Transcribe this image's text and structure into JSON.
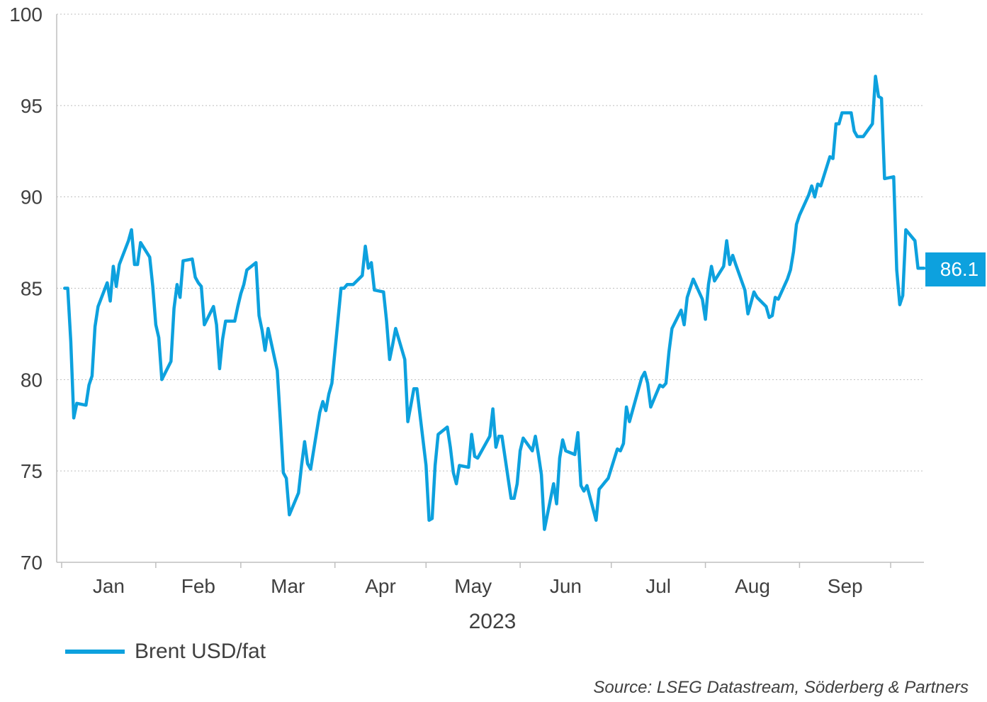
{
  "chart_data": {
    "type": "line",
    "title": "",
    "xlabel": "2023",
    "ylabel": "",
    "ylim": [
      70,
      100
    ],
    "yticks": [
      70,
      75,
      80,
      85,
      90,
      95,
      100
    ],
    "grid": "horizontal dotted",
    "legend_position": "bottom-left",
    "months": [
      "Jan",
      "Feb",
      "Mar",
      "Apr",
      "May",
      "Jun",
      "Jul",
      "Aug",
      "Sep"
    ],
    "year_label": "2023",
    "end_label": "86.1",
    "series": [
      {
        "name": "Brent USD/fat",
        "color": "#0da1de",
        "x": [
          "2023-01-02",
          "2023-01-03",
          "2023-01-04",
          "2023-01-05",
          "2023-01-06",
          "2023-01-09",
          "2023-01-10",
          "2023-01-11",
          "2023-01-12",
          "2023-01-13",
          "2023-01-16",
          "2023-01-17",
          "2023-01-18",
          "2023-01-19",
          "2023-01-20",
          "2023-01-23",
          "2023-01-24",
          "2023-01-25",
          "2023-01-26",
          "2023-01-27",
          "2023-01-30",
          "2023-01-31",
          "2023-02-01",
          "2023-02-02",
          "2023-02-03",
          "2023-02-06",
          "2023-02-07",
          "2023-02-08",
          "2023-02-09",
          "2023-02-10",
          "2023-02-13",
          "2023-02-14",
          "2023-02-15",
          "2023-02-16",
          "2023-02-17",
          "2023-02-20",
          "2023-02-21",
          "2023-02-22",
          "2023-02-23",
          "2023-02-24",
          "2023-02-27",
          "2023-02-28",
          "2023-03-01",
          "2023-03-02",
          "2023-03-03",
          "2023-03-06",
          "2023-03-07",
          "2023-03-08",
          "2023-03-09",
          "2023-03-10",
          "2023-03-13",
          "2023-03-14",
          "2023-03-15",
          "2023-03-16",
          "2023-03-17",
          "2023-03-20",
          "2023-03-21",
          "2023-03-22",
          "2023-03-23",
          "2023-03-24",
          "2023-03-27",
          "2023-03-28",
          "2023-03-29",
          "2023-03-30",
          "2023-03-31",
          "2023-04-03",
          "2023-04-04",
          "2023-04-05",
          "2023-04-06",
          "2023-04-07",
          "2023-04-10",
          "2023-04-11",
          "2023-04-12",
          "2023-04-13",
          "2023-04-14",
          "2023-04-17",
          "2023-04-18",
          "2023-04-19",
          "2023-04-20",
          "2023-04-21",
          "2023-04-24",
          "2023-04-25",
          "2023-04-26",
          "2023-04-27",
          "2023-04-28",
          "2023-05-01",
          "2023-05-02",
          "2023-05-03",
          "2023-05-04",
          "2023-05-05",
          "2023-05-08",
          "2023-05-09",
          "2023-05-10",
          "2023-05-11",
          "2023-05-12",
          "2023-05-15",
          "2023-05-16",
          "2023-05-17",
          "2023-05-18",
          "2023-05-19",
          "2023-05-22",
          "2023-05-23",
          "2023-05-24",
          "2023-05-25",
          "2023-05-26",
          "2023-05-29",
          "2023-05-30",
          "2023-05-31",
          "2023-06-01",
          "2023-06-02",
          "2023-06-05",
          "2023-06-06",
          "2023-06-07",
          "2023-06-08",
          "2023-06-09",
          "2023-06-12",
          "2023-06-13",
          "2023-06-14",
          "2023-06-15",
          "2023-06-16",
          "2023-06-19",
          "2023-06-20",
          "2023-06-21",
          "2023-06-22",
          "2023-06-23",
          "2023-06-26",
          "2023-06-27",
          "2023-06-28",
          "2023-06-29",
          "2023-06-30",
          "2023-07-03",
          "2023-07-04",
          "2023-07-05",
          "2023-07-06",
          "2023-07-07",
          "2023-07-10",
          "2023-07-11",
          "2023-07-12",
          "2023-07-13",
          "2023-07-14",
          "2023-07-17",
          "2023-07-18",
          "2023-07-19",
          "2023-07-20",
          "2023-07-21",
          "2023-07-24",
          "2023-07-25",
          "2023-07-26",
          "2023-07-27",
          "2023-07-28",
          "2023-07-31",
          "2023-08-01",
          "2023-08-02",
          "2023-08-03",
          "2023-08-04",
          "2023-08-07",
          "2023-08-08",
          "2023-08-09",
          "2023-08-10",
          "2023-08-11",
          "2023-08-14",
          "2023-08-15",
          "2023-08-16",
          "2023-08-17",
          "2023-08-18",
          "2023-08-21",
          "2023-08-22",
          "2023-08-23",
          "2023-08-24",
          "2023-08-25",
          "2023-08-28",
          "2023-08-29",
          "2023-08-30",
          "2023-08-31",
          "2023-09-01",
          "2023-09-04",
          "2023-09-05",
          "2023-09-06",
          "2023-09-07",
          "2023-09-08",
          "2023-09-11",
          "2023-09-12",
          "2023-09-13",
          "2023-09-14",
          "2023-09-15",
          "2023-09-18",
          "2023-09-19",
          "2023-09-20",
          "2023-09-21",
          "2023-09-22",
          "2023-09-25",
          "2023-09-26",
          "2023-09-27",
          "2023-09-28",
          "2023-09-29",
          "2023-10-02",
          "2023-10-03",
          "2023-10-04",
          "2023-10-05",
          "2023-10-06",
          "2023-10-09",
          "2023-10-10",
          "2023-10-11",
          "2023-10-12"
        ],
        "values": [
          85.0,
          85.0,
          82.1,
          77.9,
          78.7,
          78.6,
          79.7,
          80.2,
          82.9,
          84.0,
          85.3,
          84.3,
          86.2,
          85.1,
          86.3,
          87.6,
          88.2,
          86.3,
          86.3,
          87.5,
          86.7,
          85.1,
          83.0,
          82.3,
          80.0,
          81.0,
          83.9,
          85.2,
          84.5,
          86.5,
          86.6,
          85.6,
          85.3,
          85.1,
          83.0,
          84.0,
          83.0,
          80.6,
          82.2,
          83.2,
          83.2,
          84.0,
          84.7,
          85.2,
          86.0,
          86.4,
          83.5,
          82.7,
          81.6,
          82.8,
          80.5,
          77.8,
          74.9,
          74.6,
          72.6,
          73.8,
          75.3,
          76.6,
          75.4,
          75.1,
          78.2,
          78.8,
          78.3,
          79.2,
          79.8,
          85.0,
          85.0,
          85.2,
          85.2,
          85.2,
          85.7,
          87.3,
          86.1,
          86.4,
          84.9,
          84.8,
          83.2,
          81.1,
          81.9,
          82.8,
          81.1,
          77.7,
          78.6,
          79.5,
          79.5,
          75.3,
          72.3,
          72.4,
          75.3,
          77.0,
          77.4,
          76.3,
          74.9,
          74.3,
          75.3,
          75.2,
          77.0,
          75.8,
          75.7,
          76.0,
          76.9,
          78.4,
          76.3,
          76.9,
          76.9,
          73.5,
          73.5,
          74.3,
          76.1,
          76.8,
          76.1,
          76.9,
          75.9,
          74.8,
          71.8,
          74.3,
          73.2,
          75.7,
          76.7,
          76.1,
          75.9,
          77.1,
          74.2,
          73.9,
          74.2,
          72.3,
          74.0,
          74.2,
          74.4,
          74.6,
          76.2,
          76.1,
          76.5,
          78.5,
          77.7,
          79.5,
          80.1,
          80.4,
          79.8,
          78.5,
          79.7,
          79.6,
          79.8,
          81.5,
          82.8,
          83.8,
          83.0,
          84.5,
          85.0,
          85.5,
          84.4,
          83.3,
          85.2,
          86.2,
          85.4,
          86.2,
          87.6,
          86.3,
          86.8,
          86.3,
          84.9,
          83.6,
          84.2,
          84.8,
          84.5,
          84.0,
          83.4,
          83.5,
          84.5,
          84.4,
          85.5,
          86.0,
          87.0,
          88.5,
          89.0,
          90.1,
          90.6,
          90.0,
          90.7,
          90.6,
          92.2,
          92.1,
          94.0,
          94.0,
          94.6,
          94.6,
          93.6,
          93.3,
          93.3,
          93.3,
          94.0,
          96.6,
          95.5,
          95.4,
          91.0,
          91.1,
          86.0,
          84.1,
          84.6,
          88.2,
          87.6,
          86.1,
          86.1,
          86.1
        ]
      }
    ]
  },
  "legend": {
    "label": "Brent USD/fat"
  },
  "source": "Source: LSEG Datastream, Söderberg & Partners"
}
